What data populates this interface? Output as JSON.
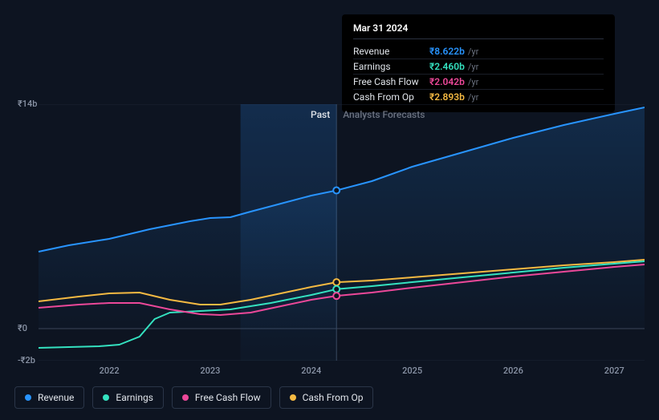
{
  "background_color": "#0d1421",
  "tooltip": {
    "title": "Mar 31 2024",
    "rows": [
      {
        "label": "Revenue",
        "value": "₹8.622b",
        "unit": "/yr",
        "color": "#2894ff"
      },
      {
        "label": "Earnings",
        "value": "₹2.460b",
        "unit": "/yr",
        "color": "#34e2c0"
      },
      {
        "label": "Free Cash Flow",
        "value": "₹2.042b",
        "unit": "/yr",
        "color": "#ec4899"
      },
      {
        "label": "Cash From Op",
        "value": "₹2.893b",
        "unit": "/yr",
        "color": "#f4b942"
      }
    ]
  },
  "regions": {
    "past": {
      "label": "Past",
      "color": "#e0e4ea"
    },
    "forecast": {
      "label": "Analysts Forecasts",
      "color": "#6b7280"
    }
  },
  "axes": {
    "y": {
      "min": -2,
      "max": 14,
      "ticks": [
        {
          "v": 14,
          "label": "₹14b"
        },
        {
          "v": 0,
          "label": "₹0"
        },
        {
          "v": -2,
          "label": "-₹2b"
        }
      ],
      "label_color": "#8a94a6",
      "label_fontsize": 11,
      "grid_color": "#1b2534",
      "zero_line_color": "#3a4458"
    },
    "x": {
      "ticks": [
        {
          "v": 2022,
          "label": "2022"
        },
        {
          "v": 2023,
          "label": "2023"
        },
        {
          "v": 2024,
          "label": "2024"
        },
        {
          "v": 2025,
          "label": "2025"
        },
        {
          "v": 2026,
          "label": "2026"
        },
        {
          "v": 2027,
          "label": "2027"
        }
      ],
      "label_color": "#8a94a6",
      "label_fontsize": 11
    }
  },
  "highlight": {
    "x_start": 2023.3,
    "x_end": 2024.25,
    "marker_x": 2024.25
  },
  "x_domain": {
    "min": 2021.3,
    "max": 2027.3
  },
  "series": [
    {
      "key": "revenue",
      "label": "Revenue",
      "color": "#2894ff",
      "line_width": 2,
      "marker_y": 8.622,
      "area_fill": "#15304e",
      "area_opacity": 0.35,
      "points": [
        [
          2021.3,
          4.8
        ],
        [
          2021.6,
          5.2
        ],
        [
          2022.0,
          5.6
        ],
        [
          2022.4,
          6.2
        ],
        [
          2022.8,
          6.7
        ],
        [
          2023.0,
          6.9
        ],
        [
          2023.2,
          6.95
        ],
        [
          2023.4,
          7.3
        ],
        [
          2023.7,
          7.8
        ],
        [
          2024.0,
          8.3
        ],
        [
          2024.25,
          8.622
        ],
        [
          2024.6,
          9.2
        ],
        [
          2025.0,
          10.1
        ],
        [
          2025.5,
          11.0
        ],
        [
          2026.0,
          11.9
        ],
        [
          2026.5,
          12.7
        ],
        [
          2027.0,
          13.4
        ],
        [
          2027.3,
          13.8
        ]
      ]
    },
    {
      "key": "cash_from_op",
      "label": "Cash From Op",
      "color": "#f4b942",
      "line_width": 2,
      "marker_y": 2.893,
      "points": [
        [
          2021.3,
          1.7
        ],
        [
          2021.7,
          2.0
        ],
        [
          2022.0,
          2.2
        ],
        [
          2022.3,
          2.25
        ],
        [
          2022.6,
          1.8
        ],
        [
          2022.9,
          1.5
        ],
        [
          2023.1,
          1.5
        ],
        [
          2023.4,
          1.8
        ],
        [
          2023.7,
          2.2
        ],
        [
          2024.0,
          2.6
        ],
        [
          2024.25,
          2.893
        ],
        [
          2024.6,
          3.0
        ],
        [
          2025.0,
          3.2
        ],
        [
          2025.5,
          3.45
        ],
        [
          2026.0,
          3.7
        ],
        [
          2026.5,
          3.95
        ],
        [
          2027.0,
          4.15
        ],
        [
          2027.3,
          4.3
        ]
      ]
    },
    {
      "key": "earnings",
      "label": "Earnings",
      "color": "#34e2c0",
      "line_width": 2,
      "marker_y": 2.46,
      "points": [
        [
          2021.3,
          -1.2
        ],
        [
          2021.6,
          -1.15
        ],
        [
          2021.9,
          -1.1
        ],
        [
          2022.1,
          -1.0
        ],
        [
          2022.3,
          -0.5
        ],
        [
          2022.45,
          0.6
        ],
        [
          2022.6,
          1.0
        ],
        [
          2022.9,
          1.1
        ],
        [
          2023.2,
          1.2
        ],
        [
          2023.6,
          1.6
        ],
        [
          2024.0,
          2.1
        ],
        [
          2024.25,
          2.46
        ],
        [
          2024.6,
          2.65
        ],
        [
          2025.0,
          2.9
        ],
        [
          2025.5,
          3.2
        ],
        [
          2026.0,
          3.5
        ],
        [
          2026.5,
          3.8
        ],
        [
          2027.0,
          4.05
        ],
        [
          2027.3,
          4.2
        ]
      ]
    },
    {
      "key": "fcf",
      "label": "Free Cash Flow",
      "color": "#ec4899",
      "line_width": 2,
      "marker_y": 2.042,
      "points": [
        [
          2021.3,
          1.3
        ],
        [
          2021.7,
          1.5
        ],
        [
          2022.0,
          1.6
        ],
        [
          2022.3,
          1.6
        ],
        [
          2022.6,
          1.2
        ],
        [
          2022.9,
          0.9
        ],
        [
          2023.1,
          0.85
        ],
        [
          2023.4,
          1.0
        ],
        [
          2023.7,
          1.4
        ],
        [
          2024.0,
          1.8
        ],
        [
          2024.25,
          2.042
        ],
        [
          2024.6,
          2.25
        ],
        [
          2025.0,
          2.55
        ],
        [
          2025.5,
          2.9
        ],
        [
          2026.0,
          3.25
        ],
        [
          2026.5,
          3.55
        ],
        [
          2027.0,
          3.85
        ],
        [
          2027.3,
          4.0
        ]
      ]
    }
  ],
  "legend": [
    {
      "key": "revenue",
      "label": "Revenue",
      "color": "#2894ff"
    },
    {
      "key": "earnings",
      "label": "Earnings",
      "color": "#34e2c0"
    },
    {
      "key": "fcf",
      "label": "Free Cash Flow",
      "color": "#ec4899"
    },
    {
      "key": "cash_from_op",
      "label": "Cash From Op",
      "color": "#f4b942"
    }
  ],
  "marker_style": {
    "radius": 4,
    "stroke_width": 2,
    "fill": "#0d1421"
  }
}
